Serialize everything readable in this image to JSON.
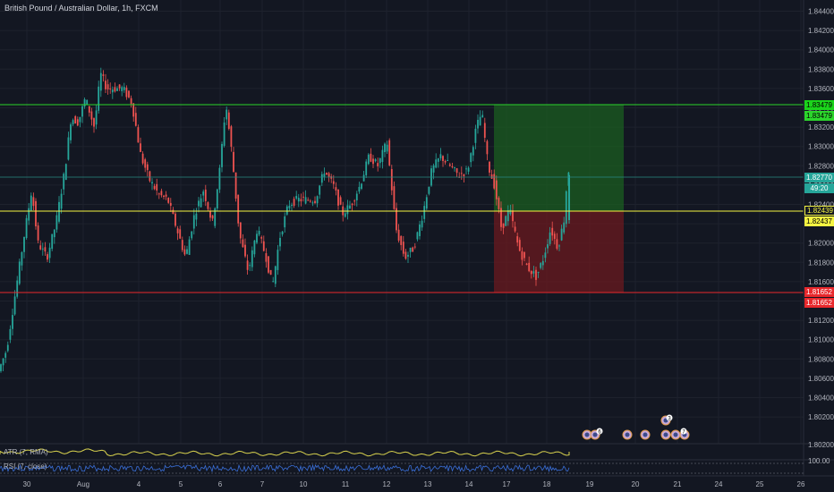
{
  "header": {
    "title": "British Pound / Australian Dollar, 1h, FXCM"
  },
  "price_axis": {
    "ticks": [
      "1.84400",
      "1.84200",
      "1.84000",
      "1.83800",
      "1.83600",
      "1.83400",
      "1.83200",
      "1.83000",
      "1.82800",
      "1.82600",
      "1.82400",
      "1.82200",
      "1.82000",
      "1.81800",
      "1.81600",
      "1.81400",
      "1.81200",
      "1.81000",
      "1.80800",
      "1.80600",
      "1.80400",
      "1.80200"
    ]
  },
  "time_axis": {
    "labels": [
      "30",
      "Aug",
      "4",
      "5",
      "6",
      "7",
      "10",
      "11",
      "12",
      "13",
      "14",
      "17",
      "18",
      "19",
      "20",
      "21",
      "24",
      "25",
      "26"
    ]
  },
  "price_tags": {
    "tp_1": "1.83479",
    "tp_2": "1.83479",
    "current_price": "1.82770",
    "countdown": "49:20",
    "entry_1": "1.82439",
    "entry_2": "1.82437",
    "sl_1": "1.81652",
    "sl_2": "1.81652"
  },
  "indicators": {
    "atr_label": "ATR (7, RMA)",
    "rsi_label": "RSI (7, close)",
    "rsi_axis_value": "100.00",
    "atr_axis_value": "1.80200"
  },
  "event_badges": [
    "6",
    "3",
    "7"
  ],
  "colors": {
    "background": "#131722",
    "bull": "#26a69a",
    "bear": "#ef5350",
    "tp_line": "#2bd62b",
    "entry_line": "#f5f542",
    "sl_line": "#e8282c",
    "atr": "#d8d24e",
    "rsi": "#3a6fd8"
  }
}
